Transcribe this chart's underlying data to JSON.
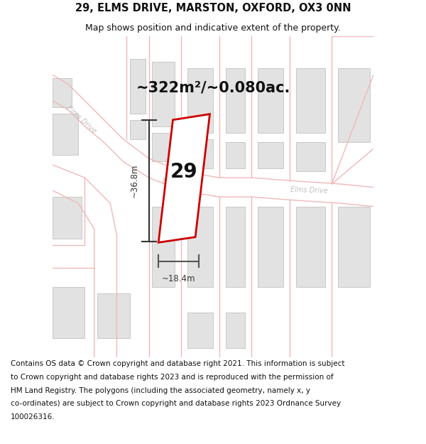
{
  "title": "29, ELMS DRIVE, MARSTON, OXFORD, OX3 0NN",
  "subtitle": "Map shows position and indicative extent of the property.",
  "area_text": "~322m²/~0.080ac.",
  "label_number": "29",
  "dim_width": "~18.4m",
  "dim_height": "~36.8m",
  "bg_color": "#ffffff",
  "map_bg": "#faf5f5",
  "road_color": "#f0b8b8",
  "building_fill": "#e2e2e2",
  "building_stroke": "#c8c8c8",
  "plot_stroke": "#cc0000",
  "plot_fill": "#ffffff",
  "dim_color": "#333333",
  "street_label_color": "#c0c0c0",
  "title_fontsize": 10.5,
  "subtitle_fontsize": 9,
  "area_fontsize": 15,
  "label_fontsize": 20,
  "footer_fontsize": 7.5,
  "footer_lines": [
    "Contains OS data © Crown copyright and database right 2021. This information is subject",
    "to Crown copyright and database rights 2023 and is reproduced with the permission of",
    "HM Land Registry. The polygons (including the associated geometry, namely x, y",
    "co-ordinates) are subject to Crown copyright and database rights 2023 Ordnance Survey",
    "100026316."
  ]
}
